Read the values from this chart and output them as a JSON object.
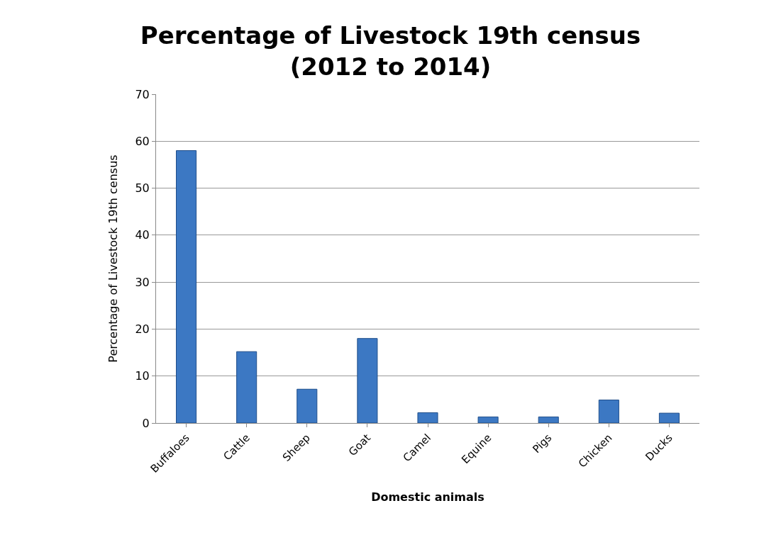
{
  "chart_data": {
    "type": "bar",
    "title": "Percentage of Livestock 19th census\n(2012 to 2014)",
    "xlabel": "Domestic animals",
    "ylabel": "Percentage of Livestock 19th census",
    "categories": [
      "Buffaloes",
      "Cattle",
      "Sheep",
      "Goat",
      "Camel",
      "Equine",
      "Pigs",
      "Chicken",
      "Ducks"
    ],
    "values": [
      58,
      15.2,
      7.2,
      18,
      2.2,
      1.3,
      1.3,
      4.9,
      2.1
    ],
    "color": "#3c78c3",
    "ylim": [
      0,
      70
    ],
    "yticks": [
      0,
      10,
      20,
      30,
      40,
      50,
      60,
      70
    ],
    "grid": "y",
    "legend": false
  }
}
